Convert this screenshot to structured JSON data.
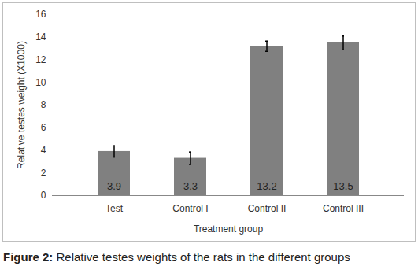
{
  "chart_data": {
    "type": "bar",
    "caption": "Figure 2: Relative testes weights of the rats in the different groups",
    "x_label": "Treatment group",
    "y_label": "Relative testes weight (X1000)",
    "categories": [
      "Test",
      "Control I",
      "Control II",
      "Control III"
    ],
    "values": [
      3.9,
      3.3,
      13.2,
      13.5
    ],
    "errors": [
      0.5,
      0.55,
      0.45,
      0.6
    ],
    "color": "#808080",
    "ylim": [
      0,
      16
    ],
    "yticks": [
      0,
      2,
      4,
      6,
      8,
      10,
      12,
      14,
      16
    ],
    "grid": false,
    "data_labels": true
  }
}
